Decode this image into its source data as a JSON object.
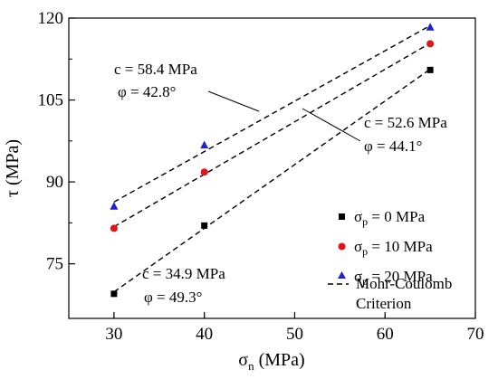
{
  "chart_data": {
    "type": "scatter",
    "xlabel": {
      "main": "σ",
      "sub": "n",
      "rest": " (MPa)"
    },
    "ylabel": "τ (MPa)",
    "xlim": [
      25,
      70
    ],
    "ylim": [
      65,
      120
    ],
    "xticks": [
      30,
      40,
      50,
      60,
      70
    ],
    "yticks": [
      75,
      90,
      105,
      120
    ],
    "series": [
      {
        "name": {
          "main": "σ",
          "sub": "p",
          "rest": " = 0 MPa"
        },
        "marker": "square",
        "color": "#000000",
        "points": [
          [
            30,
            69.5
          ],
          [
            40,
            82.0
          ],
          [
            65,
            110.5
          ]
        ],
        "fit": {
          "c": 34.9,
          "phi_deg": 49.3
        }
      },
      {
        "name": {
          "main": "σ",
          "sub": "p",
          "rest": " = 10 MPa"
        },
        "marker": "circle",
        "color": "#e0141b",
        "points": [
          [
            30,
            81.5
          ],
          [
            40,
            91.8
          ],
          [
            65,
            115.3
          ]
        ],
        "fit": {
          "c": 52.6,
          "phi_deg": 44.1
        }
      },
      {
        "name": {
          "main": "σ",
          "sub": "p",
          "rest": " = 20 MPa"
        },
        "marker": "triangle",
        "color": "#1f1fd6",
        "points": [
          [
            30,
            85.5
          ],
          [
            40,
            96.7
          ],
          [
            65,
            118.3
          ]
        ],
        "fit": {
          "c": 58.4,
          "phi_deg": 42.8
        }
      }
    ],
    "fit_legend": [
      "Mohr-Coulomb",
      "Criterion"
    ],
    "annotations": [
      {
        "line1": "c = 58.4 MPa",
        "line2": "φ = 42.8°"
      },
      {
        "line1": "c = 52.6 MPa",
        "line2": "φ = 44.1°"
      },
      {
        "line1": "c = 34.9 MPa",
        "line2": "φ = 49.3°"
      }
    ],
    "grid": false,
    "legend_position": "bottom-right"
  }
}
